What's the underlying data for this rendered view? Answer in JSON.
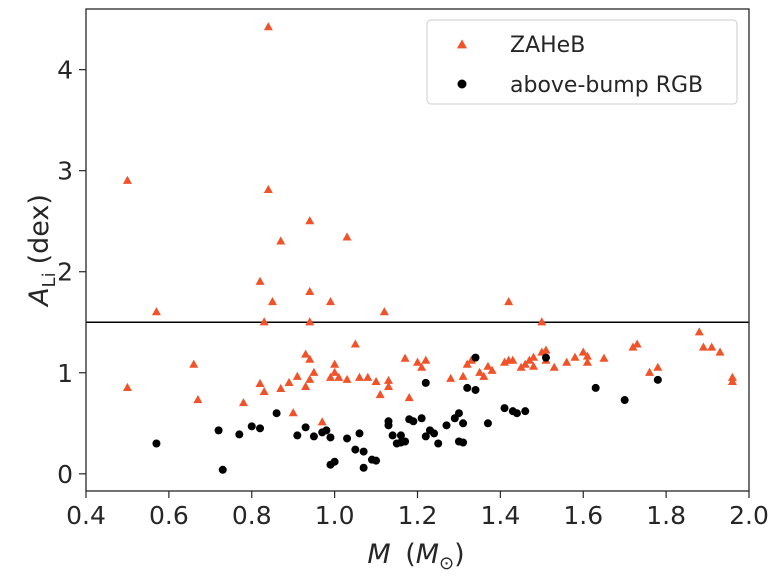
{
  "chart_data": {
    "type": "scatter",
    "xlabel": {
      "var": "M",
      "open": "(",
      "sym": "M",
      "sub": "⊙",
      "close": ")"
    },
    "ylabel": {
      "var": "A",
      "sub": "Li",
      "rest": "(dex)"
    },
    "xlim": [
      0.4,
      2.0
    ],
    "ylim": [
      -0.17,
      4.6
    ],
    "xticks": [
      0.4,
      0.6,
      0.8,
      1.0,
      1.2,
      1.4,
      1.6,
      1.8,
      2.0
    ],
    "xtick_labels": [
      "0.4",
      "0.6",
      "0.8",
      "1.0",
      "1.2",
      "1.4",
      "1.6",
      "1.8",
      "2.0"
    ],
    "yticks": [
      0,
      1,
      2,
      3,
      4
    ],
    "ytick_labels": [
      "0",
      "1",
      "2",
      "3",
      "4"
    ],
    "grid": false,
    "legend_position": "top-right",
    "hline": 1.5,
    "colors": {
      "zaheb": "#f0532a",
      "rgb": "#000000",
      "hline": "#000000"
    },
    "series": [
      {
        "name": "ZAHeB",
        "marker": "triangle",
        "color": "#f0532a",
        "points": [
          [
            0.5,
            2.9
          ],
          [
            0.5,
            0.85
          ],
          [
            0.57,
            1.6
          ],
          [
            0.66,
            1.08
          ],
          [
            0.67,
            0.73
          ],
          [
            0.78,
            0.7
          ],
          [
            0.82,
            0.89
          ],
          [
            0.82,
            1.9
          ],
          [
            0.83,
            1.5
          ],
          [
            0.83,
            0.81
          ],
          [
            0.84,
            4.42
          ],
          [
            0.84,
            2.81
          ],
          [
            0.85,
            1.7
          ],
          [
            0.87,
            2.3
          ],
          [
            0.87,
            0.84
          ],
          [
            0.89,
            0.9
          ],
          [
            0.9,
            0.6
          ],
          [
            0.91,
            0.96
          ],
          [
            0.93,
            1.18
          ],
          [
            0.93,
            0.86
          ],
          [
            0.94,
            1.13
          ],
          [
            0.94,
            0.93
          ],
          [
            0.94,
            2.5
          ],
          [
            0.94,
            1.8
          ],
          [
            0.94,
            1.5
          ],
          [
            0.95,
            1.0
          ],
          [
            0.97,
            0.51
          ],
          [
            0.99,
            1.7
          ],
          [
            0.99,
            0.95
          ],
          [
            1.0,
            1.08
          ],
          [
            1.0,
            1.0
          ],
          [
            1.01,
            0.95
          ],
          [
            1.03,
            0.93
          ],
          [
            1.03,
            2.34
          ],
          [
            1.05,
            1.28
          ],
          [
            1.06,
            0.95
          ],
          [
            1.08,
            0.95
          ],
          [
            1.1,
            0.91
          ],
          [
            1.11,
            0.78
          ],
          [
            1.12,
            1.6
          ],
          [
            1.13,
            0.92
          ],
          [
            1.13,
            0.86
          ],
          [
            1.17,
            1.14
          ],
          [
            1.18,
            0.75
          ],
          [
            1.2,
            1.1
          ],
          [
            1.21,
            1.05
          ],
          [
            1.22,
            1.12
          ],
          [
            1.28,
            0.94
          ],
          [
            1.31,
            0.96
          ],
          [
            1.32,
            1.08
          ],
          [
            1.33,
            1.12
          ],
          [
            1.35,
            1.0
          ],
          [
            1.36,
            0.96
          ],
          [
            1.37,
            1.06
          ],
          [
            1.38,
            1.02
          ],
          [
            1.41,
            1.1
          ],
          [
            1.42,
            1.7
          ],
          [
            1.42,
            1.12
          ],
          [
            1.43,
            1.12
          ],
          [
            1.45,
            1.05
          ],
          [
            1.46,
            1.08
          ],
          [
            1.47,
            1.12
          ],
          [
            1.48,
            1.06
          ],
          [
            1.48,
            1.15
          ],
          [
            1.5,
            1.5
          ],
          [
            1.5,
            1.2
          ],
          [
            1.51,
            1.22
          ],
          [
            1.51,
            1.12
          ],
          [
            1.53,
            1.05
          ],
          [
            1.56,
            1.1
          ],
          [
            1.58,
            1.15
          ],
          [
            1.6,
            1.2
          ],
          [
            1.61,
            1.16
          ],
          [
            1.61,
            1.1
          ],
          [
            1.65,
            1.14
          ],
          [
            1.72,
            1.25
          ],
          [
            1.73,
            1.28
          ],
          [
            1.76,
            1.0
          ],
          [
            1.78,
            1.05
          ],
          [
            1.88,
            1.4
          ],
          [
            1.89,
            1.25
          ],
          [
            1.91,
            1.25
          ],
          [
            1.93,
            1.2
          ],
          [
            1.96,
            0.95
          ],
          [
            1.96,
            0.91
          ]
        ]
      },
      {
        "name": "above-bump RGB",
        "marker": "circle",
        "color": "#000000",
        "points": [
          [
            0.57,
            0.3
          ],
          [
            0.72,
            0.43
          ],
          [
            0.73,
            0.04
          ],
          [
            0.77,
            0.39
          ],
          [
            0.8,
            0.47
          ],
          [
            0.82,
            0.45
          ],
          [
            0.86,
            0.6
          ],
          [
            0.91,
            0.38
          ],
          [
            0.93,
            0.46
          ],
          [
            0.95,
            0.37
          ],
          [
            0.97,
            0.41
          ],
          [
            0.98,
            0.43
          ],
          [
            0.99,
            0.09
          ],
          [
            0.99,
            0.36
          ],
          [
            1.0,
            0.12
          ],
          [
            1.03,
            0.35
          ],
          [
            1.05,
            0.24
          ],
          [
            1.06,
            0.4
          ],
          [
            1.07,
            0.22
          ],
          [
            1.07,
            0.06
          ],
          [
            1.09,
            0.14
          ],
          [
            1.13,
            0.52
          ],
          [
            1.13,
            0.48
          ],
          [
            1.14,
            0.38
          ],
          [
            1.15,
            0.3
          ],
          [
            1.16,
            0.38
          ],
          [
            1.16,
            0.31
          ],
          [
            1.17,
            0.32
          ],
          [
            1.18,
            0.54
          ],
          [
            1.19,
            0.52
          ],
          [
            1.21,
            0.55
          ],
          [
            1.22,
            0.37
          ],
          [
            1.23,
            0.43
          ],
          [
            1.24,
            0.4
          ],
          [
            1.25,
            0.3
          ],
          [
            1.27,
            0.48
          ],
          [
            1.29,
            0.55
          ],
          [
            1.3,
            0.6
          ],
          [
            1.3,
            0.32
          ],
          [
            1.31,
            0.5
          ],
          [
            1.32,
            0.85
          ],
          [
            1.34,
            1.15
          ],
          [
            1.34,
            0.83
          ],
          [
            1.37,
            0.5
          ],
          [
            1.41,
            0.65
          ],
          [
            1.43,
            0.62
          ],
          [
            1.44,
            0.6
          ],
          [
            1.46,
            0.62
          ],
          [
            1.51,
            1.15
          ],
          [
            1.63,
            0.85
          ],
          [
            1.7,
            0.73
          ],
          [
            1.78,
            0.93
          ],
          [
            1.22,
            0.9
          ],
          [
            1.31,
            0.31
          ],
          [
            1.1,
            0.13
          ]
        ]
      }
    ]
  }
}
